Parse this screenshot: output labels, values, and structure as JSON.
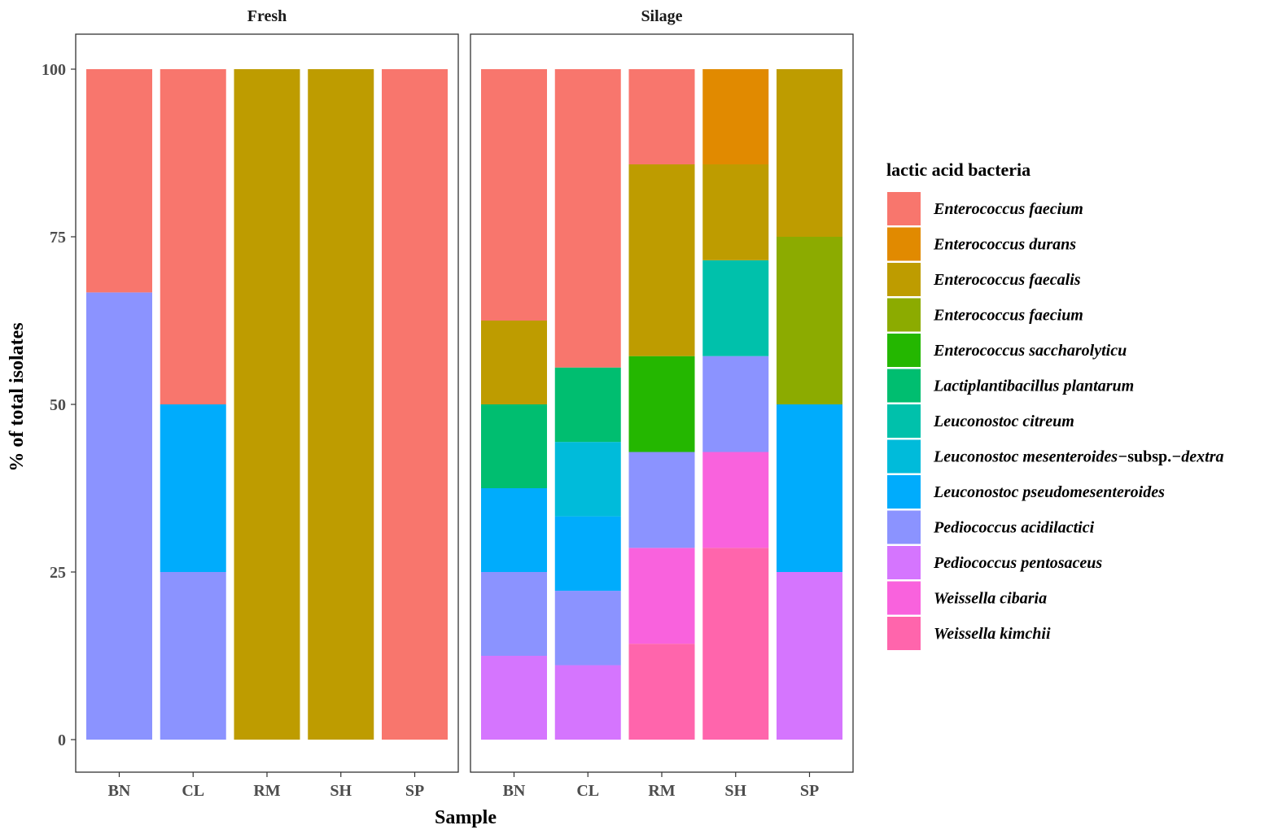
{
  "chart_data": {
    "type": "bar",
    "stacked": true,
    "xlabel": "Sample",
    "ylabel": "% of total isolates",
    "ylim": [
      0,
      100
    ],
    "yticks": [
      0,
      25,
      50,
      75,
      100
    ],
    "legend_title": "lactic acid bacteria",
    "legend_position": "right",
    "categories": [
      "BN",
      "CL",
      "RM",
      "SH",
      "SP"
    ],
    "species": [
      {
        "key": "ef1",
        "name": "Enterococcus  faecium",
        "color": "#F8766D"
      },
      {
        "key": "edu",
        "name": "Enterococcus durans",
        "color": "#E18A00"
      },
      {
        "key": "efs",
        "name": "Enterococcus faecalis",
        "color": "#BE9C00"
      },
      {
        "key": "ef2",
        "name": "Enterococcus faecium",
        "color": "#8CAB00"
      },
      {
        "key": "esa",
        "name": "Enterococcus saccharolyticu",
        "color": "#24B700"
      },
      {
        "key": "lpl",
        "name": "Lactiplantibacillus plantarum",
        "color": "#00BE70"
      },
      {
        "key": "lci",
        "name": "Leuconostoc citreum",
        "color": "#00C1AB"
      },
      {
        "key": "lme",
        "name": "Leuconostoc mesenteroides−subsp.−dextra",
        "name_parts": [
          "Leuconostoc mesenteroides−",
          "subsp.",
          "−dextra"
        ],
        "color": "#00BBDA"
      },
      {
        "key": "lps",
        "name": "Leuconostoc pseudomesenteroides",
        "color": "#00ACFC"
      },
      {
        "key": "pac",
        "name": "Pediococcus acidilactici",
        "color": "#8B93FF"
      },
      {
        "key": "ppe",
        "name": "Pediococcus pentosaceus",
        "color": "#D575FE"
      },
      {
        "key": "wci",
        "name": "Weissella cibaria",
        "color": "#F962DD"
      },
      {
        "key": "wki",
        "name": "Weissella kimchii",
        "color": "#FF65AC"
      }
    ],
    "panels": [
      {
        "name": "Fresh",
        "bars": [
          {
            "sample": "BN",
            "segments": [
              {
                "species": "pac",
                "value": 66.7
              },
              {
                "species": "ef1",
                "value": 33.3
              }
            ]
          },
          {
            "sample": "CL",
            "segments": [
              {
                "species": "pac",
                "value": 25
              },
              {
                "species": "lps",
                "value": 25
              },
              {
                "species": "ef1",
                "value": 50
              }
            ]
          },
          {
            "sample": "RM",
            "segments": [
              {
                "species": "efs",
                "value": 100
              }
            ]
          },
          {
            "sample": "SH",
            "segments": [
              {
                "species": "efs",
                "value": 100
              }
            ]
          },
          {
            "sample": "SP",
            "segments": [
              {
                "species": "ef1",
                "value": 100
              }
            ]
          }
        ]
      },
      {
        "name": "Silage",
        "bars": [
          {
            "sample": "BN",
            "segments": [
              {
                "species": "ppe",
                "value": 12.5
              },
              {
                "species": "pac",
                "value": 12.5
              },
              {
                "species": "lps",
                "value": 12.5
              },
              {
                "species": "lpl",
                "value": 12.5
              },
              {
                "species": "efs",
                "value": 12.5
              },
              {
                "species": "ef1",
                "value": 37.5
              }
            ]
          },
          {
            "sample": "CL",
            "segments": [
              {
                "species": "ppe",
                "value": 11.1
              },
              {
                "species": "pac",
                "value": 11.1
              },
              {
                "species": "lps",
                "value": 11.1
              },
              {
                "species": "lme",
                "value": 11.1
              },
              {
                "species": "lpl",
                "value": 11.1
              },
              {
                "species": "ef1",
                "value": 44.5
              }
            ]
          },
          {
            "sample": "RM",
            "segments": [
              {
                "species": "wki",
                "value": 14.3
              },
              {
                "species": "wci",
                "value": 14.3
              },
              {
                "species": "pac",
                "value": 14.3
              },
              {
                "species": "esa",
                "value": 14.3
              },
              {
                "species": "efs",
                "value": 28.6
              },
              {
                "species": "ef1",
                "value": 14.2
              }
            ]
          },
          {
            "sample": "SH",
            "segments": [
              {
                "species": "wki",
                "value": 28.6
              },
              {
                "species": "wci",
                "value": 14.3
              },
              {
                "species": "pac",
                "value": 14.3
              },
              {
                "species": "lci",
                "value": 14.3
              },
              {
                "species": "efs",
                "value": 14.3
              },
              {
                "species": "edu",
                "value": 14.2
              }
            ]
          },
          {
            "sample": "SP",
            "segments": [
              {
                "species": "ppe",
                "value": 25
              },
              {
                "species": "lps",
                "value": 25
              },
              {
                "species": "ef2",
                "value": 25
              },
              {
                "species": "efs",
                "value": 25
              }
            ]
          }
        ]
      }
    ]
  }
}
